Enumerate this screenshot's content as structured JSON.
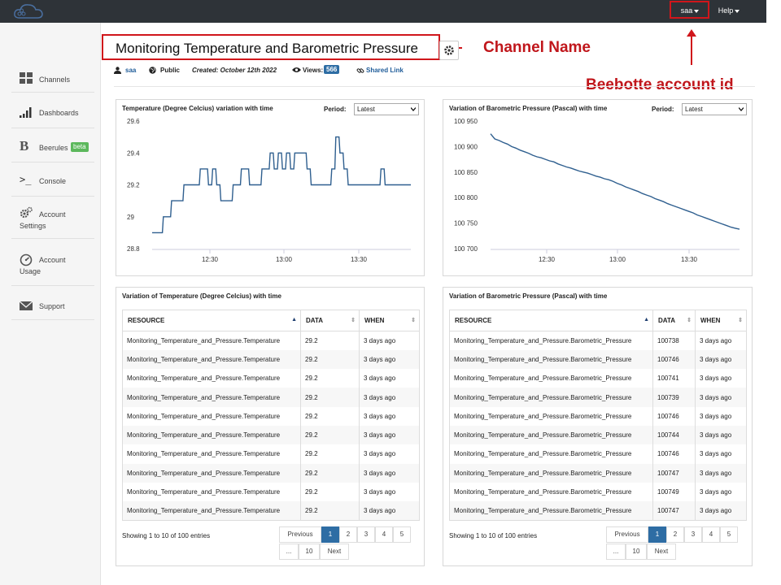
{
  "topbar": {
    "user_label": "saa",
    "help_label": "Help"
  },
  "annotations": {
    "channel_name": "Channel Name",
    "account_id": "Beebotte account id"
  },
  "sidebar": {
    "items": [
      {
        "label": "Channels",
        "icon": "grid-icon"
      },
      {
        "label": "Dashboards",
        "icon": "bars-icon"
      },
      {
        "label": "Beerules",
        "badge": "beta",
        "icon": "b-letter-icon"
      },
      {
        "label": "Console",
        "icon": "terminal-icon"
      },
      {
        "label": "Account",
        "label2": "Settings",
        "icon": "gears-icon"
      },
      {
        "label": "Account",
        "label2": "Usage",
        "icon": "gauge-icon"
      },
      {
        "label": "Support",
        "icon": "envelope-icon"
      }
    ]
  },
  "channel": {
    "title": "Monitoring Temperature and Barometric Pressure",
    "owner": "saa",
    "visibility": "Public",
    "created": "Created: October 12th 2022",
    "views_label": "Views:",
    "views": "566",
    "shared_link": "Shared Link"
  },
  "period": {
    "label": "Period:",
    "value": "Latest"
  },
  "chart_data": [
    {
      "type": "line",
      "title": "Temperature (Degree Celcius) variation with time",
      "xlabel": "",
      "ylabel": "",
      "ylim": [
        28.8,
        29.6
      ],
      "yticks": [
        "29.6",
        "29.4",
        "29.2",
        "29",
        "28.8"
      ],
      "xticks": [
        "12:30",
        "13:00",
        "13:30"
      ],
      "series": [
        {
          "values": [
            28.9,
            28.9,
            28.9,
            29,
            29,
            29.1,
            29.1,
            29.1,
            29.2,
            29.2,
            29.2,
            29.2,
            29.3,
            29.3,
            29.2,
            29.3,
            29.2,
            29.1,
            29.1,
            29.1,
            29.2,
            29.2,
            29.3,
            29.3,
            29.2,
            29.2,
            29.2,
            29.3,
            29.3,
            29.4,
            29.3,
            29.4,
            29.3,
            29.4,
            29.3,
            29.4,
            29.4,
            29.4,
            29.3,
            29.2,
            29.2,
            29.2,
            29.2,
            29.2,
            29.3,
            29.5,
            29.4,
            29.3,
            29.2,
            29.2,
            29.2,
            29.2,
            29.2,
            29.2,
            29.2,
            29.2,
            29.3,
            29.2,
            29.2,
            29.2,
            29.2,
            29.2,
            29.2,
            29.2
          ]
        }
      ]
    },
    {
      "type": "line",
      "title": "Variation of Barometric Pressure (Pascal) with time",
      "xlabel": "",
      "ylabel": "",
      "ylim": [
        100700,
        100950
      ],
      "yticks": [
        "100 950",
        "100 900",
        "100 850",
        "100 800",
        "100 750",
        "100 700"
      ],
      "xticks": [
        "12:30",
        "13:00",
        "13:30"
      ],
      "series": [
        {
          "values": [
            100925,
            100915,
            100912,
            100908,
            100905,
            100900,
            100897,
            100893,
            100890,
            100887,
            100883,
            100880,
            100878,
            100875,
            100872,
            100870,
            100866,
            100863,
            100860,
            100858,
            100855,
            100852,
            100850,
            100848,
            100845,
            100842,
            100840,
            100837,
            100835,
            100832,
            100828,
            100825,
            100821,
            100818,
            100815,
            100812,
            100808,
            100805,
            100802,
            100798,
            100795,
            100792,
            100788,
            100785,
            100782,
            100779,
            100776,
            100773,
            100770,
            100766,
            100763,
            100760,
            100757,
            100754,
            100751,
            100748,
            100745,
            100742,
            100740,
            100738
          ]
        }
      ]
    }
  ],
  "tables": [
    {
      "title": "Variation of Temperature (Degree Celcius) with time",
      "columns": [
        "RESOURCE",
        "DATA",
        "WHEN"
      ],
      "rows": [
        [
          "Monitoring_Temperature_and_Pressure.Temperature",
          "29.2",
          "3 days ago"
        ],
        [
          "Monitoring_Temperature_and_Pressure.Temperature",
          "29.2",
          "3 days ago"
        ],
        [
          "Monitoring_Temperature_and_Pressure.Temperature",
          "29.2",
          "3 days ago"
        ],
        [
          "Monitoring_Temperature_and_Pressure.Temperature",
          "29.2",
          "3 days ago"
        ],
        [
          "Monitoring_Temperature_and_Pressure.Temperature",
          "29.2",
          "3 days ago"
        ],
        [
          "Monitoring_Temperature_and_Pressure.Temperature",
          "29.2",
          "3 days ago"
        ],
        [
          "Monitoring_Temperature_and_Pressure.Temperature",
          "29.2",
          "3 days ago"
        ],
        [
          "Monitoring_Temperature_and_Pressure.Temperature",
          "29.2",
          "3 days ago"
        ],
        [
          "Monitoring_Temperature_and_Pressure.Temperature",
          "29.2",
          "3 days ago"
        ],
        [
          "Monitoring_Temperature_and_Pressure.Temperature",
          "29.2",
          "3 days ago"
        ]
      ],
      "info": "Showing 1 to 10 of 100 entries"
    },
    {
      "title": "Variation of Barometric Pressure (Pascal) with time",
      "columns": [
        "RESOURCE",
        "DATA",
        "WHEN"
      ],
      "rows": [
        [
          "Monitoring_Temperature_and_Pressure.Barometric_Pressure",
          "100738",
          "3 days ago"
        ],
        [
          "Monitoring_Temperature_and_Pressure.Barometric_Pressure",
          "100746",
          "3 days ago"
        ],
        [
          "Monitoring_Temperature_and_Pressure.Barometric_Pressure",
          "100741",
          "3 days ago"
        ],
        [
          "Monitoring_Temperature_and_Pressure.Barometric_Pressure",
          "100739",
          "3 days ago"
        ],
        [
          "Monitoring_Temperature_and_Pressure.Barometric_Pressure",
          "100746",
          "3 days ago"
        ],
        [
          "Monitoring_Temperature_and_Pressure.Barometric_Pressure",
          "100744",
          "3 days ago"
        ],
        [
          "Monitoring_Temperature_and_Pressure.Barometric_Pressure",
          "100746",
          "3 days ago"
        ],
        [
          "Monitoring_Temperature_and_Pressure.Barometric_Pressure",
          "100747",
          "3 days ago"
        ],
        [
          "Monitoring_Temperature_and_Pressure.Barometric_Pressure",
          "100749",
          "3 days ago"
        ],
        [
          "Monitoring_Temperature_and_Pressure.Barometric_Pressure",
          "100747",
          "3 days ago"
        ]
      ],
      "info": "Showing 1 to 10 of 100 entries"
    }
  ],
  "pagination": {
    "previous": "Previous",
    "pages": [
      "1",
      "2",
      "3",
      "4",
      "5"
    ],
    "ellipsis": "...",
    "last": "10",
    "next": "Next"
  },
  "colors": {
    "line": "#2f5f8f",
    "accent": "#2e6da4",
    "annotation": "#d0161b",
    "beta": "#5cb85c"
  }
}
